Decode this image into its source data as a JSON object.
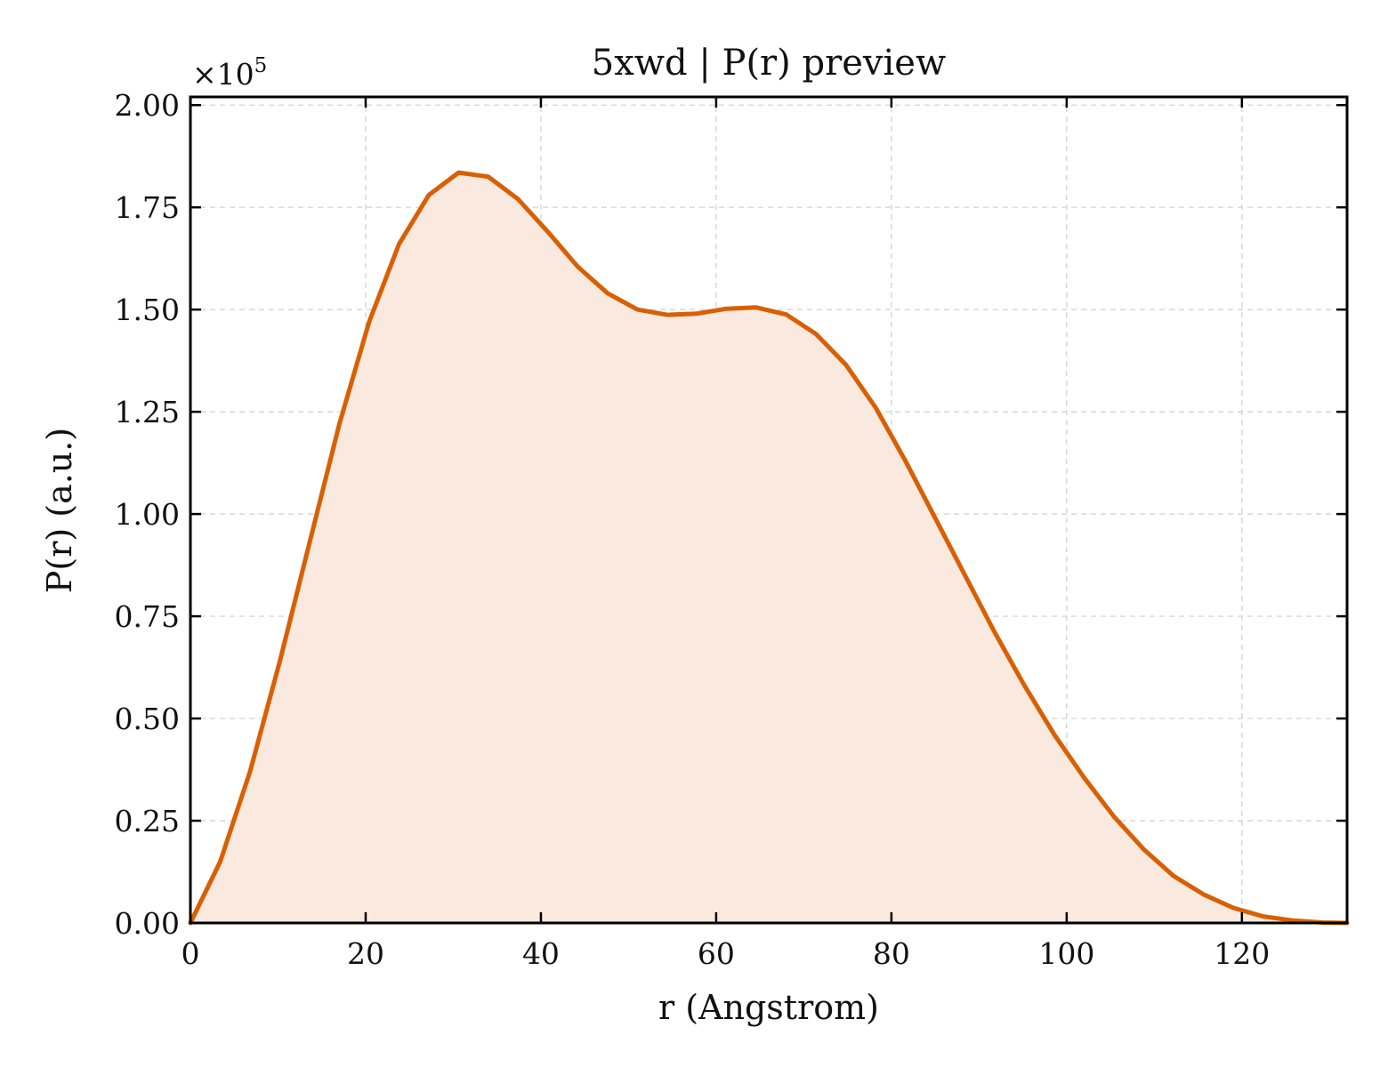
{
  "chart_data": {
    "type": "area",
    "title": "5xwd | P(r) preview",
    "xlabel": "r (Angstrom)",
    "ylabel": "P(r) (a.u.)",
    "y_multiplier": "×10",
    "y_multiplier_exp": "5",
    "xlim": [
      0,
      132
    ],
    "ylim": [
      0,
      2.02
    ],
    "y_scale_factor": 100000,
    "grid": true,
    "x_ticks": [
      0,
      20,
      40,
      60,
      80,
      100,
      120
    ],
    "x_tick_labels": [
      "0",
      "20",
      "40",
      "60",
      "80",
      "100",
      "120"
    ],
    "y_ticks": [
      0,
      0.25,
      0.5,
      0.75,
      1.0,
      1.25,
      1.5,
      1.75,
      2.0
    ],
    "y_tick_labels": [
      "0.00",
      "0.25",
      "0.50",
      "0.75",
      "1.00",
      "1.25",
      "1.50",
      "1.75",
      "2.00"
    ],
    "colors": {
      "line": "#d95f02",
      "fill": "#f9e9de"
    },
    "series": [
      {
        "x": [
          0,
          3.4,
          6.8,
          10.2,
          13.6,
          17.0,
          20.4,
          23.8,
          27.2,
          30.6,
          34.0,
          37.4,
          40.8,
          44.2,
          47.6,
          51.0,
          54.4,
          57.8,
          61.2,
          64.6,
          68.0,
          71.4,
          74.8,
          78.2,
          81.6,
          85.0,
          88.4,
          91.8,
          95.2,
          98.6,
          102.0,
          105.4,
          108.8,
          112.2,
          115.6,
          119.0,
          122.4,
          125.8,
          129.2,
          132.0
        ],
        "values": [
          0.0,
          0.15,
          0.37,
          0.64,
          0.93,
          1.22,
          1.47,
          1.66,
          1.78,
          1.835,
          1.825,
          1.77,
          1.69,
          1.605,
          1.54,
          1.5,
          1.487,
          1.49,
          1.502,
          1.505,
          1.488,
          1.44,
          1.365,
          1.26,
          1.13,
          0.99,
          0.85,
          0.71,
          0.58,
          0.46,
          0.355,
          0.26,
          0.18,
          0.115,
          0.07,
          0.037,
          0.016,
          0.006,
          0.001,
          0.0
        ]
      }
    ]
  }
}
